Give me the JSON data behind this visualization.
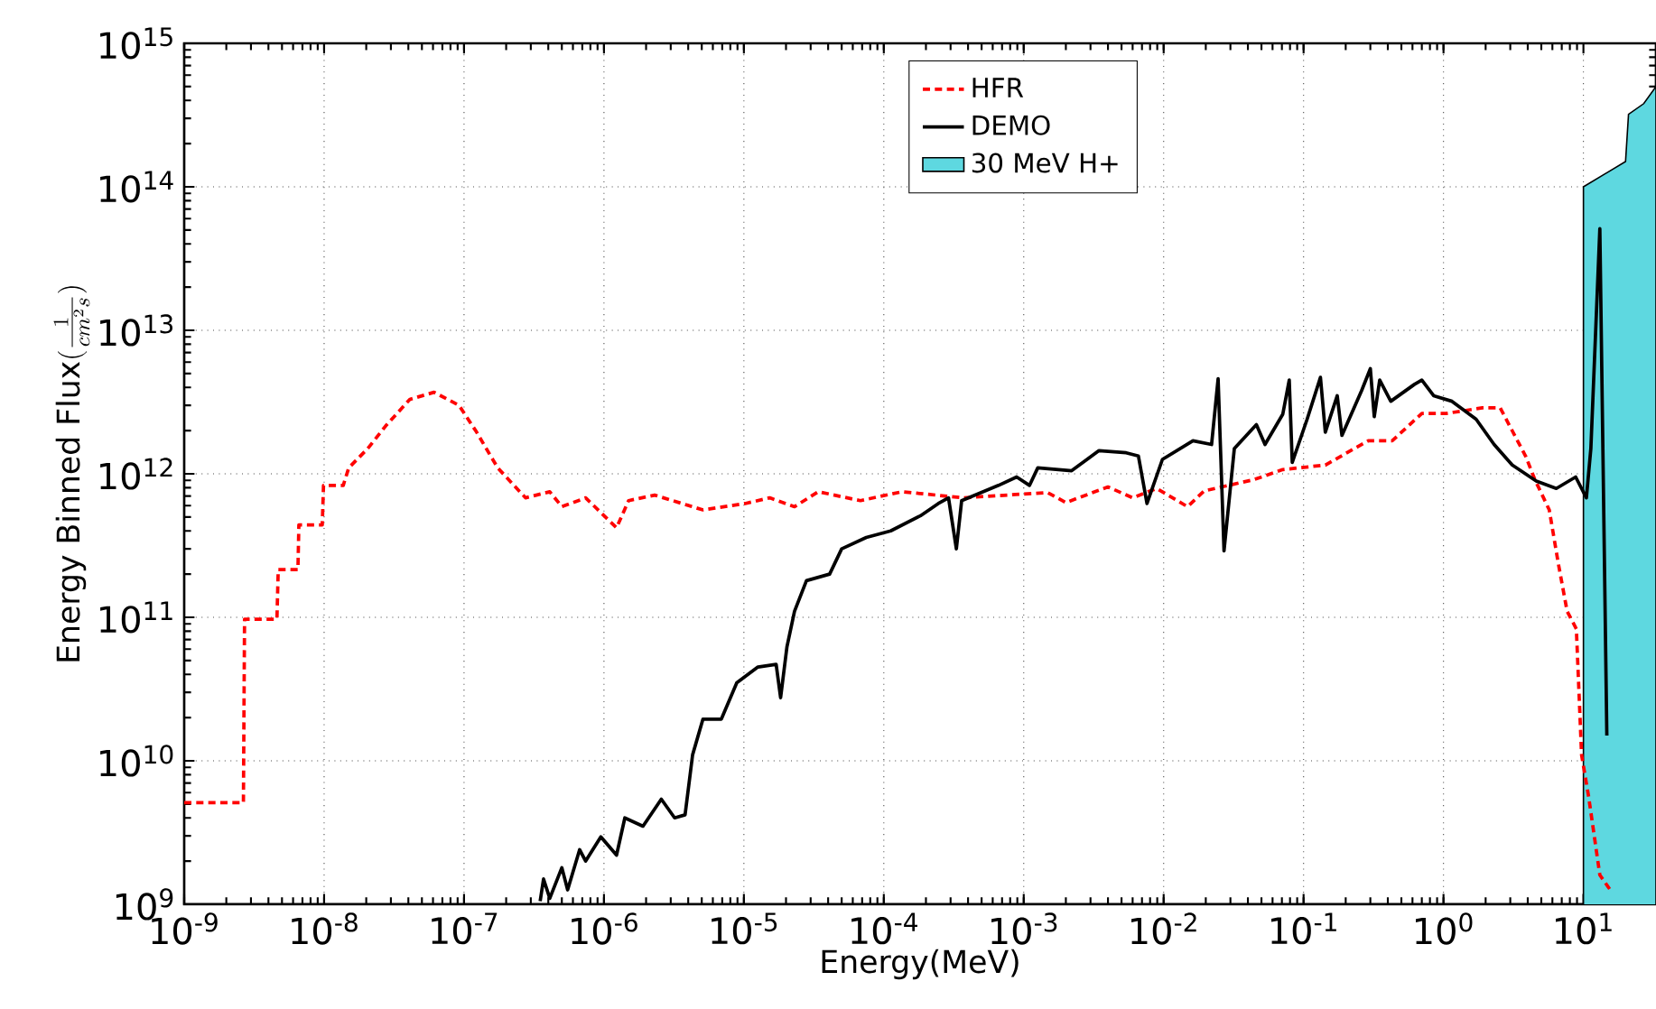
{
  "chart_data": {
    "type": "line",
    "xlabel": "Energy(MeV)",
    "ylabel": "\\mbox{Energy Binned Flux}(\\frac{1}{cm^2s})",
    "log": "xy",
    "grid": true,
    "legend": "top",
    "xlim": [
      1e-09,
      33
    ],
    "ylim": [
      1000000000.0,
      1000000000000000.0
    ],
    "xticks": [
      {
        "value": 1e-09,
        "label": "10$^{-9}$"
      },
      {
        "value": 1e-08,
        "label": "10$^{-8}$"
      },
      {
        "value": 1e-07,
        "label": "10$^{-7}$"
      },
      {
        "value": 1e-06,
        "label": "10$^{-6}$"
      },
      {
        "value": 1e-05,
        "label": "10$^{-5}$"
      },
      {
        "value": 0.0001,
        "label": "10$^{-4}$"
      },
      {
        "value": 0.001,
        "label": "10$^{-3}$"
      },
      {
        "value": 0.01,
        "label": "10$^{-2}$"
      },
      {
        "value": 0.1,
        "label": "10$^{-1}$"
      },
      {
        "value": 1,
        "label": "10$^{0}$"
      },
      {
        "value": 10,
        "label": "10$^{1}$"
      }
    ],
    "yticks": [
      {
        "value": 1000000000.0,
        "label": "10$^{9}$"
      },
      {
        "value": 10000000000.0,
        "label": "10$^{10}$"
      },
      {
        "value": 100000000000.0,
        "label": "10$^{11}$"
      },
      {
        "value": 1000000000000.0,
        "label": "10$^{12}$"
      },
      {
        "value": 10000000000000.0,
        "label": "10$^{13}$"
      },
      {
        "value": 100000000000000.0,
        "label": "10$^{14}$"
      },
      {
        "value": 1000000000000000.0,
        "label": "10$^{15}$"
      }
    ],
    "series": [
      {
        "name": "HFR",
        "line_style": "dashed",
        "color": "#ff0000",
        "x": [
          1e-09,
          2.65e-09,
          2.7e-09,
          4.6e-09,
          4.7e-09,
          6.5e-09,
          6.6e-09,
          9.7e-09,
          9.9e-09,
          1.37e-08,
          1.5e-08,
          2.05e-08,
          2.75e-08,
          4.1e-08,
          6.1e-08,
          9.2e-08,
          1.23e-07,
          1.74e-07,
          2.75e-07,
          4.1e-07,
          5e-07,
          7.4e-07,
          1.23e-06,
          1.5e-06,
          2.3e-06,
          5.1e-06,
          1.02e-05,
          1.53e-05,
          2.3e-05,
          3.4e-05,
          6.8e-05,
          0.000135,
          0.00037,
          0.00148,
          0.002,
          0.004,
          0.006,
          0.0089,
          0.0148,
          0.0195,
          0.044,
          0.071,
          0.143,
          0.29,
          0.43,
          0.7,
          1.04,
          1.89,
          2.54,
          3.86,
          4.5,
          5.7,
          6.6,
          7.65,
          8.9,
          9.7,
          10.9,
          13.1,
          16.1
        ],
        "values": [
          5100000000.0,
          5100000000.0,
          97000000000.0,
          97000000000.0,
          215000000000.0,
          215000000000.0,
          440000000000.0,
          440000000000.0,
          830000000000.0,
          830000000000.0,
          1100000000000.0,
          1500000000000.0,
          2150000000000.0,
          3300000000000.0,
          3700000000000.0,
          3000000000000.0,
          1950000000000.0,
          1100000000000.0,
          680000000000.0,
          750000000000.0,
          590000000000.0,
          680000000000.0,
          420000000000.0,
          650000000000.0,
          710000000000.0,
          560000000000.0,
          620000000000.0,
          680000000000.0,
          590000000000.0,
          750000000000.0,
          650000000000.0,
          750000000000.0,
          680000000000.0,
          740000000000.0,
          630000000000.0,
          810000000000.0,
          680000000000.0,
          790000000000.0,
          590000000000.0,
          760000000000.0,
          910000000000.0,
          1070000000000.0,
          1150000000000.0,
          1700000000000.0,
          1700000000000.0,
          2630000000000.0,
          2630000000000.0,
          2880000000000.0,
          2880000000000.0,
          1330000000000.0,
          910000000000.0,
          560000000000.0,
          240000000000.0,
          110000000000.0,
          83000000000.0,
          11000000000.0,
          5600000000.0,
          1600000000.0,
          1200000000.0
        ]
      },
      {
        "name": "DEMO",
        "line_style": "solid",
        "color": "#000000",
        "x": [
          3.5e-07,
          3.7e-07,
          4.1e-07,
          5e-07,
          5.5e-07,
          6.7e-07,
          7.4e-07,
          9.5e-07,
          1.23e-06,
          1.41e-06,
          1.9e-06,
          2.57e-06,
          3.2e-06,
          3.8e-06,
          4.3e-06,
          5.1e-06,
          6.9e-06,
          8.9e-06,
          1.26e-05,
          1.7e-05,
          1.83e-05,
          2.03e-05,
          2.3e-05,
          2.8e-05,
          4.1e-05,
          5e-05,
          7.5e-05,
          0.000112,
          0.000183,
          0.000245,
          0.00029,
          0.00033,
          0.00036,
          0.00066,
          0.00089,
          0.0011,
          0.00126,
          0.0022,
          0.00345,
          0.0054,
          0.0066,
          0.0076,
          0.0098,
          0.0162,
          0.022,
          0.0245,
          0.027,
          0.032,
          0.046,
          0.053,
          0.071,
          0.079,
          0.083,
          0.106,
          0.132,
          0.143,
          0.174,
          0.188,
          0.26,
          0.3,
          0.32,
          0.35,
          0.42,
          0.62,
          0.7,
          0.85,
          1.15,
          1.71,
          2.3,
          3.1,
          4.6,
          6.4,
          8.8,
          10.5,
          11.3,
          13.1,
          14.7
        ],
        "values": [
          1050000000.0,
          1500000000.0,
          1100000000.0,
          1800000000.0,
          1260000000.0,
          2400000000.0,
          2000000000.0,
          2950000000.0,
          2200000000.0,
          4000000000.0,
          3500000000.0,
          5400000000.0,
          4000000000.0,
          4200000000.0,
          11000000000.0,
          19500000000.0,
          19500000000.0,
          35000000000.0,
          45000000000.0,
          47000000000.0,
          27500000000.0,
          62000000000.0,
          110000000000.0,
          180000000000.0,
          200000000000.0,
          300000000000.0,
          360000000000.0,
          400000000000.0,
          510000000000.0,
          620000000000.0,
          680000000000.0,
          300000000000.0,
          650000000000.0,
          830000000000.0,
          950000000000.0,
          830000000000.0,
          1100000000000.0,
          1050000000000.0,
          1450000000000.0,
          1400000000000.0,
          1330000000000.0,
          620000000000.0,
          1260000000000.0,
          1700000000000.0,
          1600000000000.0,
          4600000000000.0,
          290000000000.0,
          1500000000000.0,
          2200000000000.0,
          1600000000000.0,
          2600000000000.0,
          4500000000000.0,
          1200000000000.0,
          2400000000000.0,
          4700000000000.0,
          1950000000000.0,
          3500000000000.0,
          1850000000000.0,
          3800000000000.0,
          5400000000000.0,
          2500000000000.0,
          4500000000000.0,
          3200000000000.0,
          4200000000000.0,
          4500000000000.0,
          3500000000000.0,
          3200000000000.0,
          2400000000000.0,
          1600000000000.0,
          1150000000000.0,
          890000000000.0,
          790000000000.0,
          950000000000.0,
          680000000000.0,
          1500000000000.0,
          51000000000000.0,
          15000000000.0
        ]
      },
      {
        "name": "30 MeV H+",
        "type": "area",
        "color": "#5ed8e0",
        "x": [
          10,
          20,
          21,
          27,
          33
        ],
        "values": [
          100000000000000.0,
          150000000000000.0,
          320000000000000.0,
          380000000000000.0,
          500000000000000.0
        ]
      }
    ]
  }
}
